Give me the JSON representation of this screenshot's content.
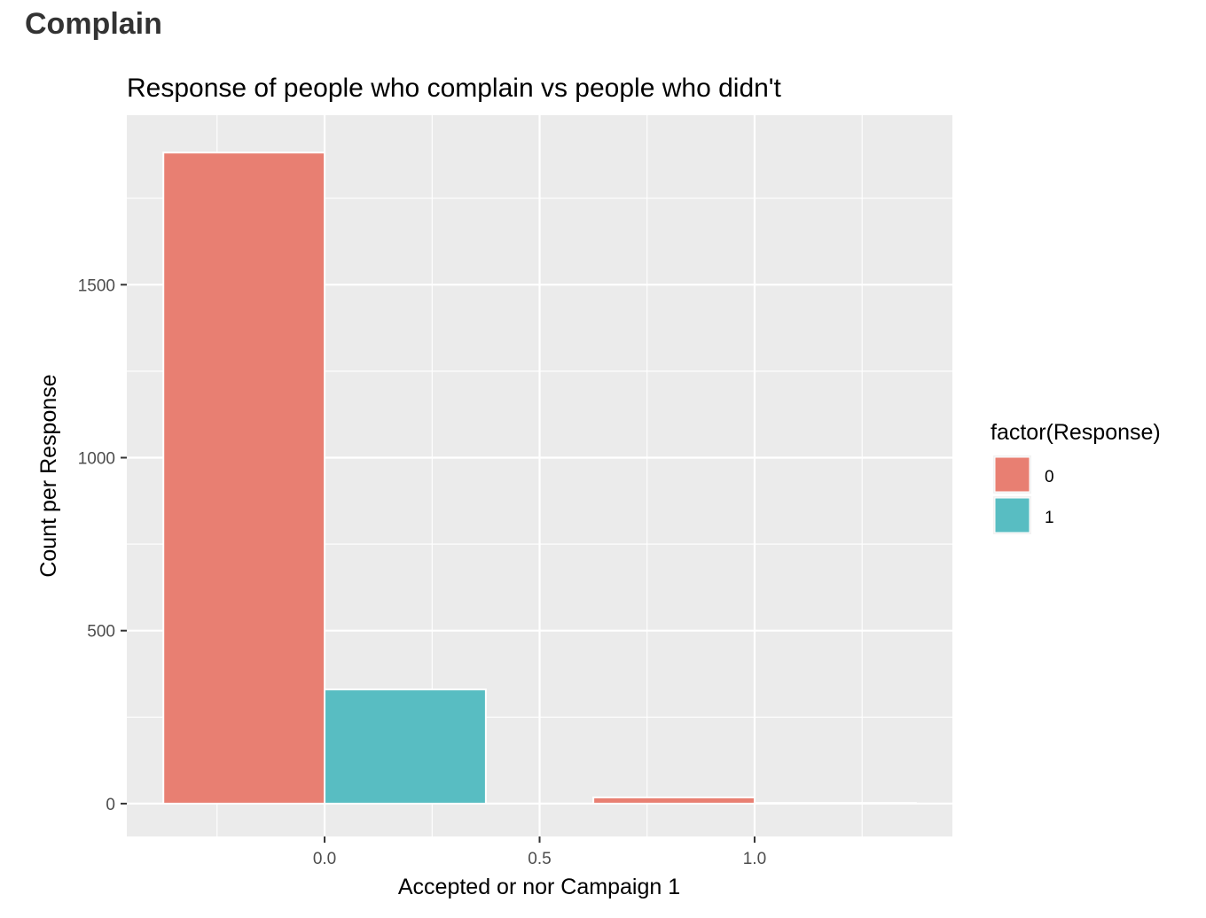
{
  "header": {
    "title": "Complain"
  },
  "chart_data": {
    "type": "bar",
    "title": "Response of people who complain vs people who didn't",
    "xlabel": "Accepted or nor Campaign 1",
    "ylabel": "Count per Response",
    "x": [
      0,
      1
    ],
    "xlim": [
      -0.46,
      1.46
    ],
    "ylim": [
      -95,
      1990
    ],
    "x_ticks": [
      0.0,
      0.5,
      1.0
    ],
    "x_tick_labels": [
      "0.0",
      "0.5",
      "1.0"
    ],
    "y_ticks": [
      0,
      500,
      1000,
      1500
    ],
    "y_tick_labels": [
      "0",
      "500",
      "1000",
      "1500"
    ],
    "bar_width": 0.75,
    "position": "dodge",
    "grid": true,
    "legend": {
      "title": "factor(Response)",
      "position": "right"
    },
    "series": [
      {
        "name": "0",
        "color": "#E87F72",
        "values": [
          1882,
          18
        ]
      },
      {
        "name": "1",
        "color": "#58BDC2",
        "values": [
          330,
          2
        ]
      }
    ]
  }
}
